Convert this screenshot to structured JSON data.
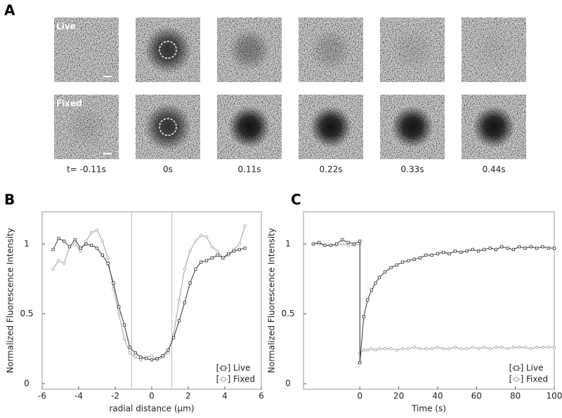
{
  "panel_labels": [
    "A",
    "B",
    "C"
  ],
  "image_grid": {
    "row_labels": [
      "Live",
      "Fixed"
    ],
    "time_labels": [
      "t= -0.11s",
      "0s",
      "0.11s",
      "0.22s",
      "0.33s",
      "0.44s"
    ]
  },
  "chart_data": [
    {
      "type": "line",
      "xlabel": "radial distance (μm)",
      "ylabel": "Normalized Fluorescence Intensity",
      "x": [
        -5.4,
        -5.1,
        -4.8,
        -4.5,
        -4.2,
        -3.9,
        -3.6,
        -3.3,
        -3.0,
        -2.7,
        -2.4,
        -2.1,
        -1.8,
        -1.5,
        -1.2,
        -0.9,
        -0.6,
        -0.3,
        0,
        0.3,
        0.6,
        0.9,
        1.2,
        1.5,
        1.8,
        2.1,
        2.4,
        2.7,
        3.0,
        3.3,
        3.6,
        3.9,
        4.2,
        4.5,
        4.8,
        5.1
      ],
      "series": [
        {
          "name": "Live",
          "color": "#333333",
          "marker": "square",
          "values": [
            0.96,
            1.04,
            1.02,
            0.98,
            1.03,
            0.97,
            1.0,
            0.99,
            0.97,
            0.92,
            0.86,
            0.72,
            0.55,
            0.42,
            0.26,
            0.22,
            0.19,
            0.18,
            0.17,
            0.18,
            0.2,
            0.24,
            0.33,
            0.45,
            0.58,
            0.72,
            0.82,
            0.87,
            0.88,
            0.9,
            0.92,
            0.9,
            0.93,
            0.95,
            0.96,
            0.97
          ]
        },
        {
          "name": "Fixed",
          "color": "#a0a0a0",
          "marker": "circle",
          "values": [
            0.82,
            0.88,
            0.86,
            0.98,
            1.0,
            0.95,
            1.02,
            1.08,
            1.1,
            1.02,
            0.9,
            0.68,
            0.5,
            0.32,
            0.22,
            0.19,
            0.17,
            0.19,
            0.2,
            0.17,
            0.19,
            0.22,
            0.35,
            0.6,
            0.82,
            0.95,
            1.02,
            1.06,
            1.05,
            0.98,
            0.95,
            0.9,
            0.92,
            0.96,
            1.0,
            1.13
          ]
        }
      ],
      "vlines": [
        -1.1,
        1.1
      ],
      "xlim": [
        -6,
        6
      ],
      "xticks": [
        -6,
        -4,
        -2,
        0,
        2,
        4,
        6
      ],
      "ylim": [
        -0.04,
        1.23
      ],
      "yticks": [
        0,
        0.5,
        1
      ],
      "legend": "lower right"
    },
    {
      "type": "line",
      "xlabel": "Time (s)",
      "ylabel": "Normalized Fluorescence Intensity",
      "x": [
        -24,
        -21,
        -18,
        -15,
        -12,
        -9,
        -6,
        -3,
        0,
        0,
        2,
        4,
        6,
        8,
        10,
        13,
        16,
        19,
        22,
        25,
        28,
        31,
        34,
        37,
        40,
        43,
        46,
        49,
        52,
        55,
        58,
        61,
        64,
        67,
        70,
        73,
        76,
        79,
        82,
        85,
        88,
        91,
        94,
        97,
        100
      ],
      "series": [
        {
          "name": "Live",
          "color": "#333333",
          "marker": "square",
          "values": [
            1.0,
            1.01,
            0.99,
            0.99,
            1.0,
            1.03,
            1.01,
            1.0,
            1.02,
            0.15,
            0.48,
            0.6,
            0.67,
            0.72,
            0.76,
            0.8,
            0.83,
            0.85,
            0.87,
            0.88,
            0.89,
            0.9,
            0.92,
            0.92,
            0.93,
            0.94,
            0.93,
            0.95,
            0.94,
            0.95,
            0.96,
            0.95,
            0.96,
            0.97,
            0.96,
            0.98,
            0.97,
            0.96,
            0.98,
            0.97,
            0.98,
            0.97,
            0.98,
            0.97,
            0.97
          ]
        },
        {
          "name": "Fixed",
          "color": "#a0a0a0",
          "marker": "circle",
          "values": [
            1.0,
            1.0,
            0.99,
            0.99,
            0.99,
            1.0,
            0.99,
            0.99,
            1.0,
            0.22,
            0.24,
            0.24,
            0.25,
            0.24,
            0.25,
            0.25,
            0.25,
            0.24,
            0.25,
            0.25,
            0.26,
            0.25,
            0.25,
            0.25,
            0.26,
            0.25,
            0.25,
            0.26,
            0.25,
            0.25,
            0.26,
            0.25,
            0.26,
            0.25,
            0.26,
            0.26,
            0.25,
            0.26,
            0.26,
            0.26,
            0.25,
            0.26,
            0.26,
            0.26,
            0.26
          ]
        }
      ],
      "xlim": [
        -29,
        100
      ],
      "xticks": [
        0,
        20,
        40,
        60,
        80,
        100
      ],
      "ylim": [
        -0.04,
        1.23
      ],
      "yticks": [
        0,
        0.5,
        1
      ],
      "legend": "lower right"
    }
  ]
}
